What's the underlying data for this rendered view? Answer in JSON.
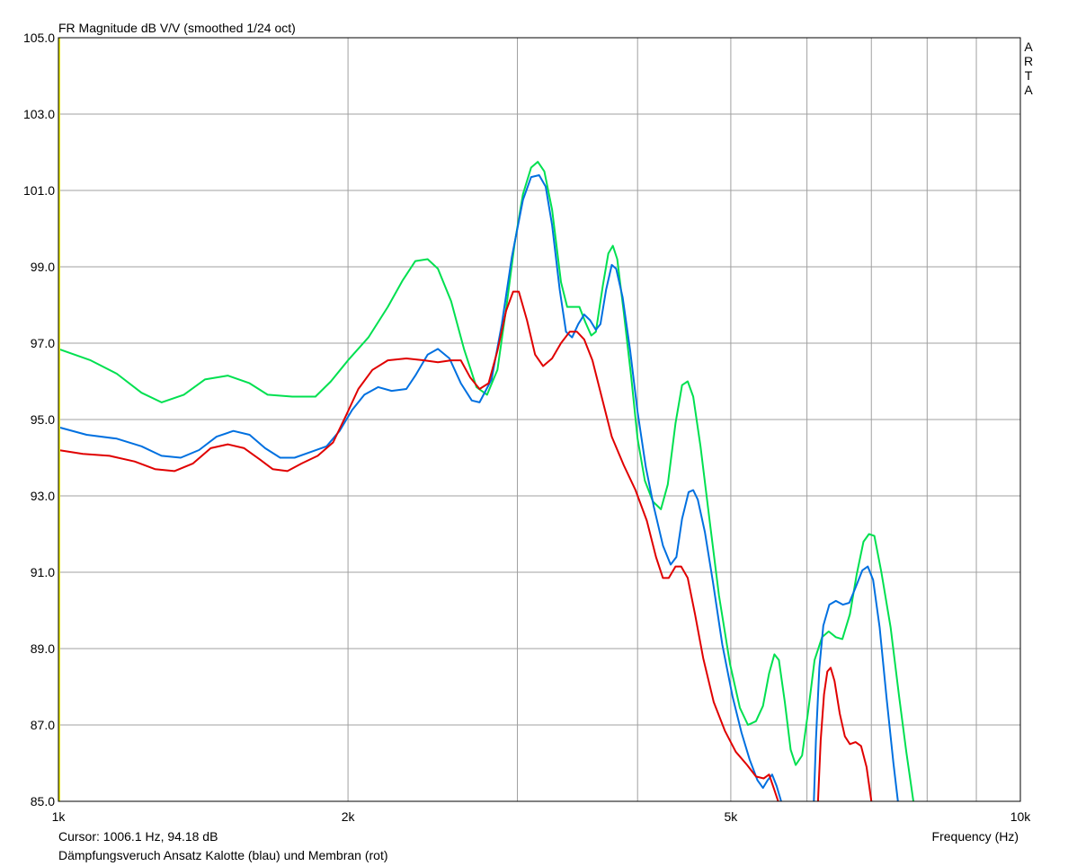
{
  "chart_data": {
    "type": "line",
    "title": "FR Magnitude dB V/V (smoothed 1/24 oct)",
    "watermark": "ARTA",
    "xlabel": "Frequency (Hz)",
    "x_scale": "log",
    "xlim": [
      1000,
      10000
    ],
    "ylim": [
      85,
      105
    ],
    "x_tick_labels": [
      {
        "value": 1000,
        "label": "1k"
      },
      {
        "value": 2000,
        "label": "2k"
      },
      {
        "value": 5000,
        "label": "5k"
      },
      {
        "value": 10000,
        "label": "10k"
      }
    ],
    "x_gridlines": [
      2000,
      3000,
      4000,
      5000,
      6000,
      7000,
      8000,
      9000
    ],
    "y_tick_labels": [
      "85.0",
      "87.0",
      "89.0",
      "91.0",
      "93.0",
      "95.0",
      "97.0",
      "99.0",
      "101.0",
      "103.0",
      "105.0"
    ],
    "grid": true,
    "cursor_text": "Cursor: 1006.1 Hz, 94.18 dB",
    "caption": "Dämpfungsveruch Ansatz Kalotte (blau) und Membran (rot)",
    "colors": {
      "background": "#ffffff",
      "grid": "#a0a0a0",
      "cursor": "#e8e800"
    },
    "series": [
      {
        "color": "#00e050",
        "points": [
          [
            1000,
            96.85
          ],
          [
            1080,
            96.55
          ],
          [
            1150,
            96.2
          ],
          [
            1220,
            95.7
          ],
          [
            1280,
            95.45
          ],
          [
            1350,
            95.65
          ],
          [
            1420,
            96.05
          ],
          [
            1500,
            96.15
          ],
          [
            1580,
            95.95
          ],
          [
            1650,
            95.65
          ],
          [
            1750,
            95.6
          ],
          [
            1850,
            95.6
          ],
          [
            1920,
            96.0
          ],
          [
            2000,
            96.55
          ],
          [
            2100,
            97.15
          ],
          [
            2200,
            97.95
          ],
          [
            2280,
            98.65
          ],
          [
            2350,
            99.15
          ],
          [
            2420,
            99.2
          ],
          [
            2480,
            98.95
          ],
          [
            2560,
            98.1
          ],
          [
            2640,
            96.85
          ],
          [
            2720,
            95.85
          ],
          [
            2790,
            95.65
          ],
          [
            2860,
            96.3
          ],
          [
            2920,
            97.9
          ],
          [
            2980,
            99.6
          ],
          [
            3040,
            100.9
          ],
          [
            3100,
            101.6
          ],
          [
            3150,
            101.75
          ],
          [
            3200,
            101.5
          ],
          [
            3260,
            100.5
          ],
          [
            3330,
            98.6
          ],
          [
            3380,
            97.95
          ],
          [
            3440,
            97.95
          ],
          [
            3480,
            97.95
          ],
          [
            3530,
            97.55
          ],
          [
            3580,
            97.2
          ],
          [
            3620,
            97.3
          ],
          [
            3680,
            98.5
          ],
          [
            3730,
            99.35
          ],
          [
            3770,
            99.55
          ],
          [
            3810,
            99.2
          ],
          [
            3870,
            97.8
          ],
          [
            3940,
            96.1
          ],
          [
            4000,
            94.5
          ],
          [
            4070,
            93.4
          ],
          [
            4150,
            92.85
          ],
          [
            4230,
            92.65
          ],
          [
            4300,
            93.3
          ],
          [
            4380,
            94.9
          ],
          [
            4450,
            95.9
          ],
          [
            4510,
            96.0
          ],
          [
            4570,
            95.6
          ],
          [
            4650,
            94.3
          ],
          [
            4750,
            92.4
          ],
          [
            4860,
            90.4
          ],
          [
            4990,
            88.6
          ],
          [
            5110,
            87.45
          ],
          [
            5210,
            87.0
          ],
          [
            5310,
            87.1
          ],
          [
            5400,
            87.5
          ],
          [
            5480,
            88.35
          ],
          [
            5550,
            88.85
          ],
          [
            5610,
            88.7
          ],
          [
            5690,
            87.6
          ],
          [
            5770,
            86.35
          ],
          [
            5840,
            85.95
          ],
          [
            5930,
            86.2
          ],
          [
            6020,
            87.4
          ],
          [
            6110,
            88.7
          ],
          [
            6220,
            89.3
          ],
          [
            6320,
            89.45
          ],
          [
            6430,
            89.3
          ],
          [
            6530,
            89.25
          ],
          [
            6650,
            89.9
          ],
          [
            6760,
            90.95
          ],
          [
            6870,
            91.8
          ],
          [
            6960,
            92.0
          ],
          [
            7050,
            91.95
          ],
          [
            7170,
            91.0
          ],
          [
            7330,
            89.55
          ],
          [
            7480,
            87.75
          ],
          [
            7610,
            86.3
          ],
          [
            7740,
            85.0
          ]
        ]
      },
      {
        "color": "#0070e0",
        "points": [
          [
            1000,
            94.8
          ],
          [
            1070,
            94.6
          ],
          [
            1150,
            94.5
          ],
          [
            1220,
            94.3
          ],
          [
            1280,
            94.05
          ],
          [
            1340,
            94.0
          ],
          [
            1400,
            94.2
          ],
          [
            1460,
            94.55
          ],
          [
            1520,
            94.7
          ],
          [
            1580,
            94.6
          ],
          [
            1640,
            94.25
          ],
          [
            1700,
            94.0
          ],
          [
            1760,
            94.0
          ],
          [
            1830,
            94.15
          ],
          [
            1900,
            94.3
          ],
          [
            1960,
            94.7
          ],
          [
            2020,
            95.25
          ],
          [
            2080,
            95.65
          ],
          [
            2150,
            95.85
          ],
          [
            2220,
            95.75
          ],
          [
            2300,
            95.8
          ],
          [
            2350,
            96.15
          ],
          [
            2420,
            96.7
          ],
          [
            2480,
            96.85
          ],
          [
            2550,
            96.6
          ],
          [
            2620,
            95.95
          ],
          [
            2690,
            95.5
          ],
          [
            2740,
            95.45
          ],
          [
            2820,
            96.05
          ],
          [
            2890,
            97.5
          ],
          [
            2960,
            99.25
          ],
          [
            3040,
            100.75
          ],
          [
            3100,
            101.35
          ],
          [
            3160,
            101.4
          ],
          [
            3210,
            101.1
          ],
          [
            3260,
            100.1
          ],
          [
            3320,
            98.4
          ],
          [
            3370,
            97.3
          ],
          [
            3420,
            97.15
          ],
          [
            3470,
            97.5
          ],
          [
            3520,
            97.75
          ],
          [
            3570,
            97.6
          ],
          [
            3620,
            97.35
          ],
          [
            3660,
            97.5
          ],
          [
            3710,
            98.4
          ],
          [
            3760,
            99.05
          ],
          [
            3800,
            98.95
          ],
          [
            3860,
            98.2
          ],
          [
            3930,
            96.8
          ],
          [
            4000,
            95.2
          ],
          [
            4080,
            93.75
          ],
          [
            4160,
            92.7
          ],
          [
            4250,
            91.7
          ],
          [
            4330,
            91.2
          ],
          [
            4390,
            91.4
          ],
          [
            4450,
            92.4
          ],
          [
            4520,
            93.1
          ],
          [
            4570,
            93.15
          ],
          [
            4620,
            92.9
          ],
          [
            4700,
            92.05
          ],
          [
            4790,
            90.75
          ],
          [
            4900,
            89.1
          ],
          [
            5020,
            87.75
          ],
          [
            5130,
            86.8
          ],
          [
            5230,
            86.1
          ],
          [
            5330,
            85.55
          ],
          [
            5400,
            85.35
          ],
          [
            5460,
            85.55
          ],
          [
            5520,
            85.7
          ],
          [
            5580,
            85.4
          ],
          [
            5640,
            85.0
          ],
          [
            6100,
            85.0
          ],
          [
            6130,
            86.6
          ],
          [
            6180,
            88.5
          ],
          [
            6240,
            89.6
          ],
          [
            6330,
            90.15
          ],
          [
            6430,
            90.25
          ],
          [
            6540,
            90.15
          ],
          [
            6640,
            90.2
          ],
          [
            6740,
            90.6
          ],
          [
            6850,
            91.05
          ],
          [
            6940,
            91.15
          ],
          [
            7030,
            90.8
          ],
          [
            7140,
            89.55
          ],
          [
            7260,
            87.7
          ],
          [
            7380,
            86.0
          ],
          [
            7460,
            85.0
          ]
        ]
      },
      {
        "color": "#e00000",
        "points": [
          [
            1000,
            94.2
          ],
          [
            1060,
            94.1
          ],
          [
            1130,
            94.05
          ],
          [
            1200,
            93.9
          ],
          [
            1260,
            93.7
          ],
          [
            1320,
            93.65
          ],
          [
            1380,
            93.85
          ],
          [
            1440,
            94.25
          ],
          [
            1500,
            94.35
          ],
          [
            1560,
            94.25
          ],
          [
            1620,
            93.95
          ],
          [
            1670,
            93.7
          ],
          [
            1730,
            93.65
          ],
          [
            1790,
            93.85
          ],
          [
            1860,
            94.05
          ],
          [
            1930,
            94.4
          ],
          [
            1990,
            95.1
          ],
          [
            2050,
            95.8
          ],
          [
            2120,
            96.3
          ],
          [
            2200,
            96.55
          ],
          [
            2300,
            96.6
          ],
          [
            2400,
            96.55
          ],
          [
            2480,
            96.5
          ],
          [
            2560,
            96.55
          ],
          [
            2620,
            96.55
          ],
          [
            2680,
            96.1
          ],
          [
            2740,
            95.8
          ],
          [
            2800,
            95.95
          ],
          [
            2860,
            96.8
          ],
          [
            2920,
            97.85
          ],
          [
            2970,
            98.35
          ],
          [
            3010,
            98.35
          ],
          [
            3070,
            97.6
          ],
          [
            3130,
            96.7
          ],
          [
            3190,
            96.4
          ],
          [
            3260,
            96.6
          ],
          [
            3330,
            97.0
          ],
          [
            3400,
            97.3
          ],
          [
            3460,
            97.3
          ],
          [
            3520,
            97.1
          ],
          [
            3590,
            96.55
          ],
          [
            3670,
            95.6
          ],
          [
            3760,
            94.55
          ],
          [
            3870,
            93.8
          ],
          [
            3980,
            93.15
          ],
          [
            4090,
            92.35
          ],
          [
            4180,
            91.4
          ],
          [
            4250,
            90.85
          ],
          [
            4310,
            90.85
          ],
          [
            4380,
            91.15
          ],
          [
            4440,
            91.15
          ],
          [
            4510,
            90.85
          ],
          [
            4590,
            89.9
          ],
          [
            4680,
            88.75
          ],
          [
            4800,
            87.6
          ],
          [
            4930,
            86.85
          ],
          [
            5060,
            86.3
          ],
          [
            5200,
            85.95
          ],
          [
            5310,
            85.65
          ],
          [
            5410,
            85.6
          ],
          [
            5480,
            85.7
          ],
          [
            5540,
            85.35
          ],
          [
            5600,
            85.0
          ],
          [
            6160,
            85.0
          ],
          [
            6200,
            86.6
          ],
          [
            6250,
            87.8
          ],
          [
            6300,
            88.4
          ],
          [
            6350,
            88.5
          ],
          [
            6410,
            88.15
          ],
          [
            6490,
            87.3
          ],
          [
            6570,
            86.7
          ],
          [
            6650,
            86.5
          ],
          [
            6740,
            86.55
          ],
          [
            6830,
            86.45
          ],
          [
            6920,
            85.9
          ],
          [
            7000,
            85.0
          ]
        ]
      }
    ]
  }
}
